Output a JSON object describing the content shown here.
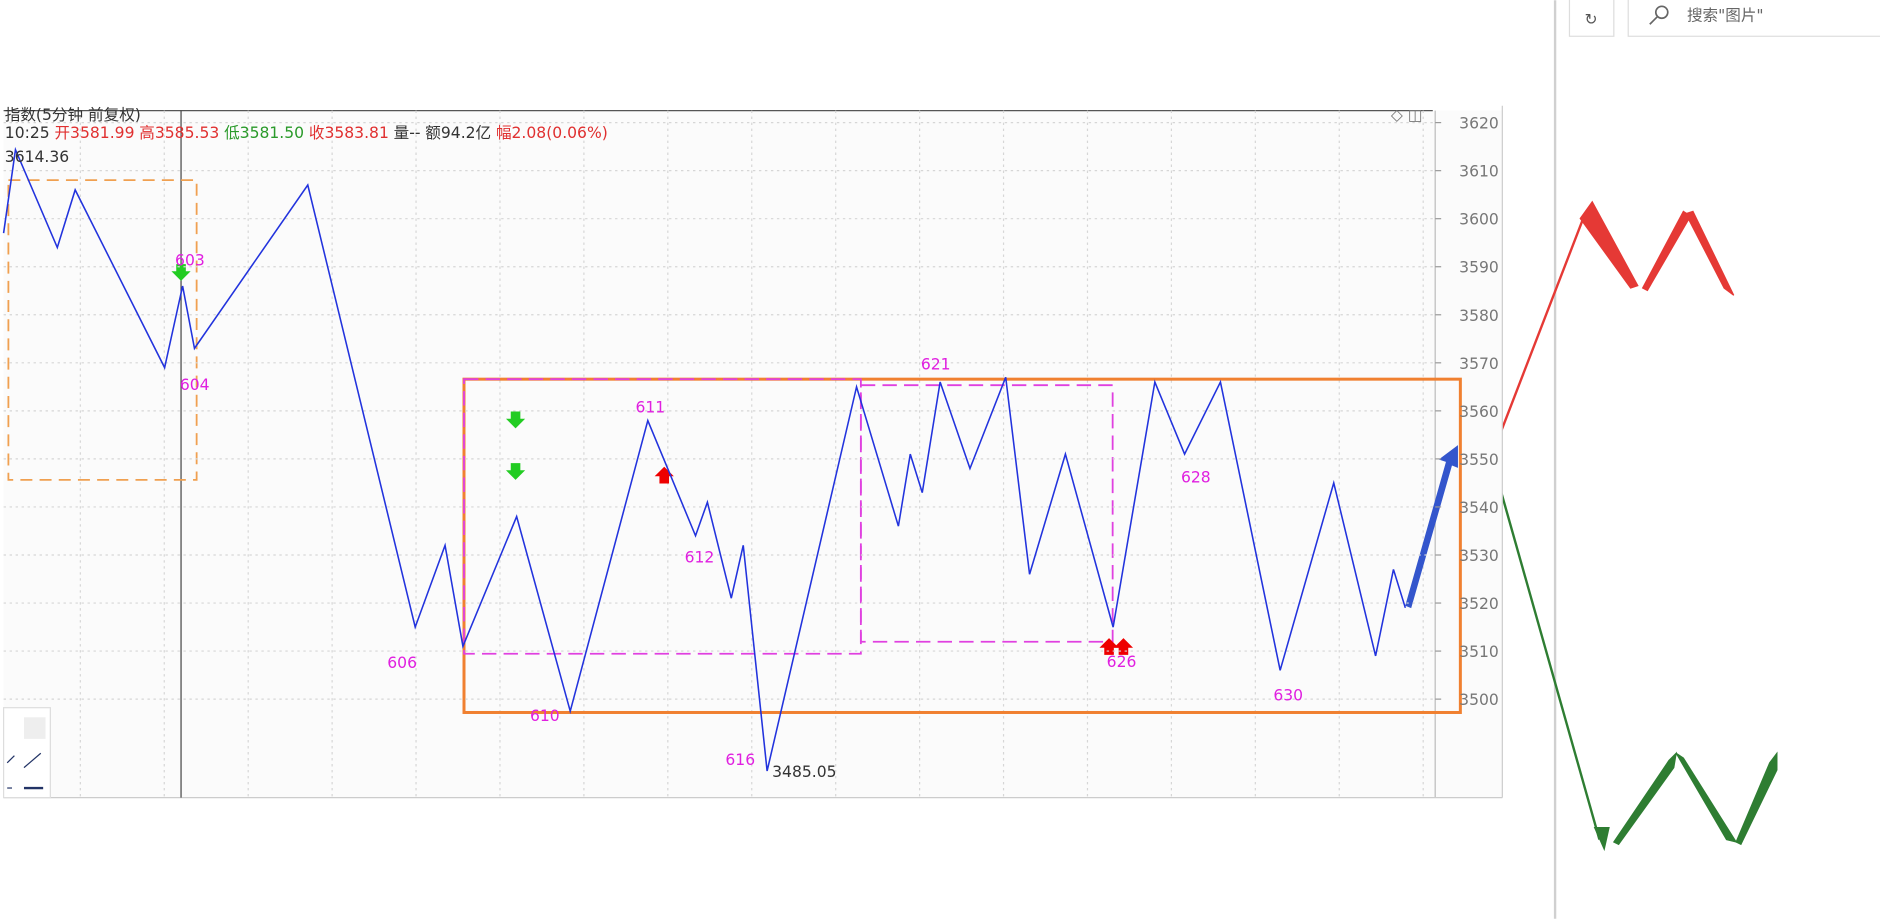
{
  "toolbar": {
    "refresh_icon": "↻",
    "search_placeholder": "搜索\"图片\""
  },
  "chart_data": {
    "type": "line",
    "title": "指数(5分钟 前复权)",
    "info": [
      "10:25",
      "开3581.99",
      "高3585.53",
      "低3581.50",
      "收3583.81",
      "量--",
      "额94.2亿",
      "幅2.08(0.06%)"
    ],
    "color": "#2233dd",
    "x": [
      0,
      2,
      9,
      12,
      27,
      30,
      32,
      51,
      69,
      74,
      77,
      86,
      95,
      108,
      116,
      118,
      122,
      124,
      128,
      143,
      150,
      152,
      154,
      157,
      162,
      168,
      172,
      178,
      186,
      193,
      198,
      204,
      214,
      223,
      230,
      233,
      235
    ],
    "values": [
      3597,
      3614.36,
      3594,
      3606,
      3569,
      3586,
      3573,
      3607,
      3515,
      3532,
      3511,
      3538,
      3497.5,
      3558,
      3534,
      3541,
      3521,
      3532,
      3485.05,
      3565,
      3536,
      3551,
      3543,
      3566,
      3548,
      3567,
      3526,
      3551,
      3515,
      3566,
      3551,
      3566,
      3506,
      3545,
      3509,
      3527,
      3519
    ],
    "xlim": [
      0,
      240
    ],
    "ylim": [
      3479.5,
      3622.5
    ],
    "yticks": [
      3500,
      3510,
      3520,
      3530,
      3540,
      3550,
      3560,
      3570,
      3580,
      3590,
      3600,
      3610,
      3620
    ],
    "grid": true,
    "annotations": [
      "3614.36",
      "603",
      "604",
      "606",
      "610",
      "611",
      "612",
      "616",
      "3485.05",
      "621",
      "626",
      "628",
      "630"
    ]
  }
}
